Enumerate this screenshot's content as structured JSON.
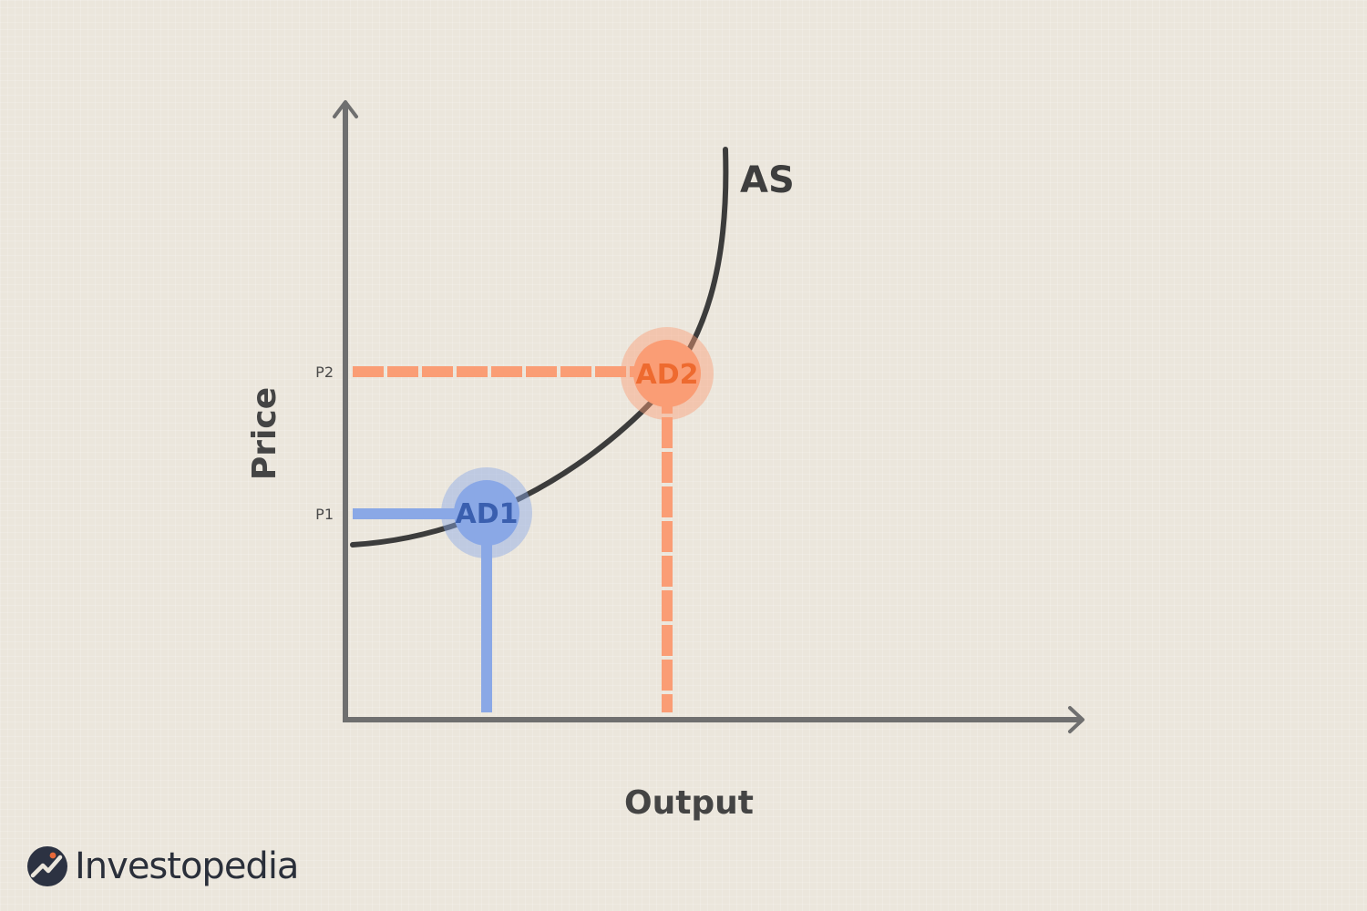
{
  "diagram": {
    "y_axis_label": "Price",
    "x_axis_label": "Output",
    "curve_label": "AS",
    "ticks": [
      {
        "id": "p1",
        "label": "P1"
      },
      {
        "id": "p2",
        "label": "P2"
      }
    ],
    "points": [
      {
        "id": "ad1",
        "label": "AD1",
        "color": "#3a5faf",
        "fill": "#8aa8e6"
      },
      {
        "id": "ad2",
        "label": "AD2",
        "color": "#ee6a2f",
        "fill": "#fa9d75"
      }
    ]
  },
  "brand": {
    "name": "Investopedia",
    "logo_icon": "investopedia-logo-icon"
  }
}
